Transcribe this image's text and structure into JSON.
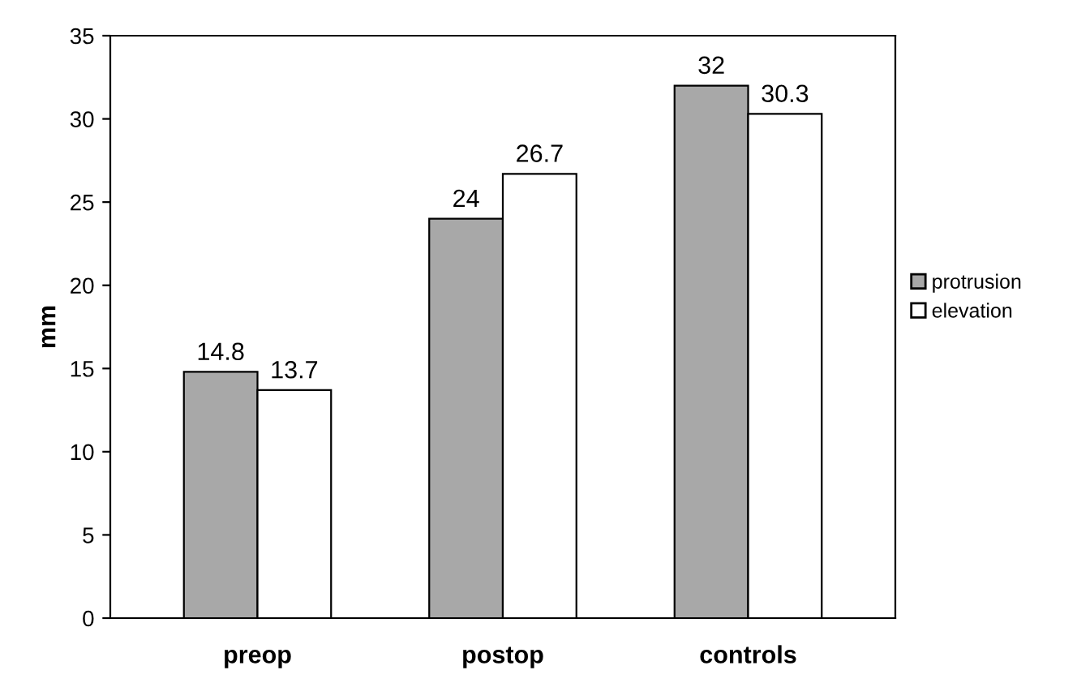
{
  "chart_data": {
    "type": "bar",
    "ylabel": "mm",
    "categories": [
      "preop",
      "postop",
      "controls"
    ],
    "series": [
      {
        "name": "protrusion",
        "color": "#a8a8a8",
        "values": [
          14.8,
          24,
          32
        ]
      },
      {
        "name": "elevation",
        "color": "#ffffff",
        "values": [
          13.7,
          26.7,
          30.3
        ]
      }
    ],
    "ylim": [
      0,
      35
    ],
    "yticks": [
      0,
      5,
      10,
      15,
      20,
      25,
      30,
      35
    ],
    "grid": false,
    "legend": "right",
    "data_labels": true
  }
}
